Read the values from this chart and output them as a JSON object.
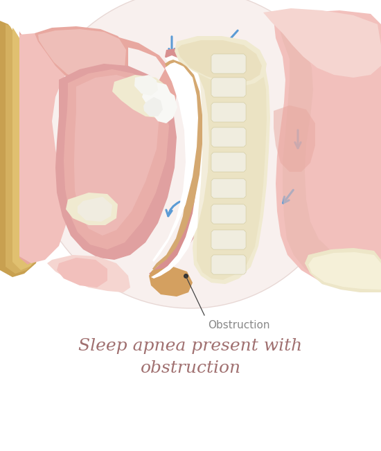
{
  "title_line1": "Sleep apnea present with",
  "title_line2": "obstruction",
  "title_color": "#a07070",
  "title_fontsize": 18,
  "obstruction_label": "Obstruction",
  "obstruction_label_color": "#888888",
  "obstruction_label_fontsize": 11,
  "bg_color": "#ffffff",
  "pink_light": "#f2c0bc",
  "pink_mid": "#e8a8a0",
  "pink_dark": "#d08888",
  "pink_deep": "#c87878",
  "pink_pale": "#f5d5d0",
  "pink_tissue": "#e0a0a0",
  "soft_palate_color": "#e8aaa8",
  "tongue_base": "#e0a0a0",
  "tongue_mid": "#f0b8b0",
  "tongue_light": "#f5ccc8",
  "throat_wall": "#cc8888",
  "airway_white": "#ffffff",
  "airway_lining": "#f5e8e5",
  "throat_inner": "#d89090",
  "bone_cream": "#f0ead0",
  "bone_tan": "#e8ddb8",
  "bone_yellow": "#d4b870",
  "skull_outer": "#c8a050",
  "skull_mid": "#d4b060",
  "skull_light": "#e0c070",
  "spine_bg": "#e8ddb8",
  "spine_white": "#f5f5f0",
  "arrow_blue": "#5b9bd5",
  "dot_black": "#333333",
  "right_tissue": "#e8b8b0",
  "right_pale": "#f0ccc8"
}
